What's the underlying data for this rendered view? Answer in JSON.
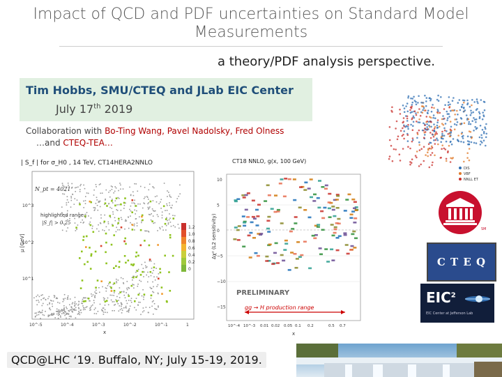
{
  "slide": {
    "title": "Impact of QCD and PDF uncertainties on Standard Model Measurements",
    "subtitle": "a theory/PDF analysis perspective.",
    "author": "Tim Hobbs, SMU/CTEQ and JLab EIC Center",
    "date_main": "July 17",
    "date_sup": "th",
    "date_year": "2019",
    "collab_prefix": "Collaboration with",
    "collab_names": "Bo-Ting Wang, Pavel Nadolsky, Fred Olness",
    "collab2_prefix": "…and",
    "collab2_name": "CTEQ-TEA…",
    "footer": "QCD@LHC ‘19.  Buffalo, NY; July 15-19, 2019."
  },
  "left_plot": {
    "title": "| S_f | for σ_H0 , 14 TeV, CT14HERA2NNLO",
    "npt": "N_pt = 4021",
    "highlight_title": "highlighted range:",
    "highlight_range": "|S_f| > 0.25",
    "ylabel": "μ [GeV]",
    "xlabel": "x",
    "ytick_labels": [
      "10^3",
      "10^2",
      "10^1"
    ],
    "xtick_labels": [
      "10^-5",
      "10^-4",
      "10^-3",
      "10^-2",
      "10^-1",
      "1"
    ],
    "colorbar_labels": [
      "1.2",
      "1.0",
      "0.8",
      "0.6",
      "0.4",
      "0.2",
      "0"
    ],
    "colors": {
      "gray": "#9a9a9a",
      "green": "#8fc31f",
      "red": "#d9432d",
      "orange": "#f29a2e"
    }
  },
  "right_plot": {
    "title": "CT18 NNLO, g(x, 100 GeV)",
    "ylabel": "Δχ² (L2 sensitivity)",
    "xlabel": "x",
    "ytick_labels": [
      "10",
      "5",
      "0",
      "−5",
      "−10",
      "−15"
    ],
    "xtick_labels": [
      "10^-4",
      "10^-3",
      "0.01",
      "0.02",
      "0.05",
      "0.1",
      "0.2",
      "0.5",
      "0.7"
    ],
    "preliminary": "PRELIMINARY",
    "range_label": "gg → H production range"
  },
  "scatter_legend": [
    "DIS",
    "VBF",
    "NNLL ET"
  ],
  "logos": {
    "cteq": "C T E Q",
    "eic": "EIC",
    "eic_sup": "2",
    "eic_sub": "EIC Center at Jefferson Lab"
  }
}
